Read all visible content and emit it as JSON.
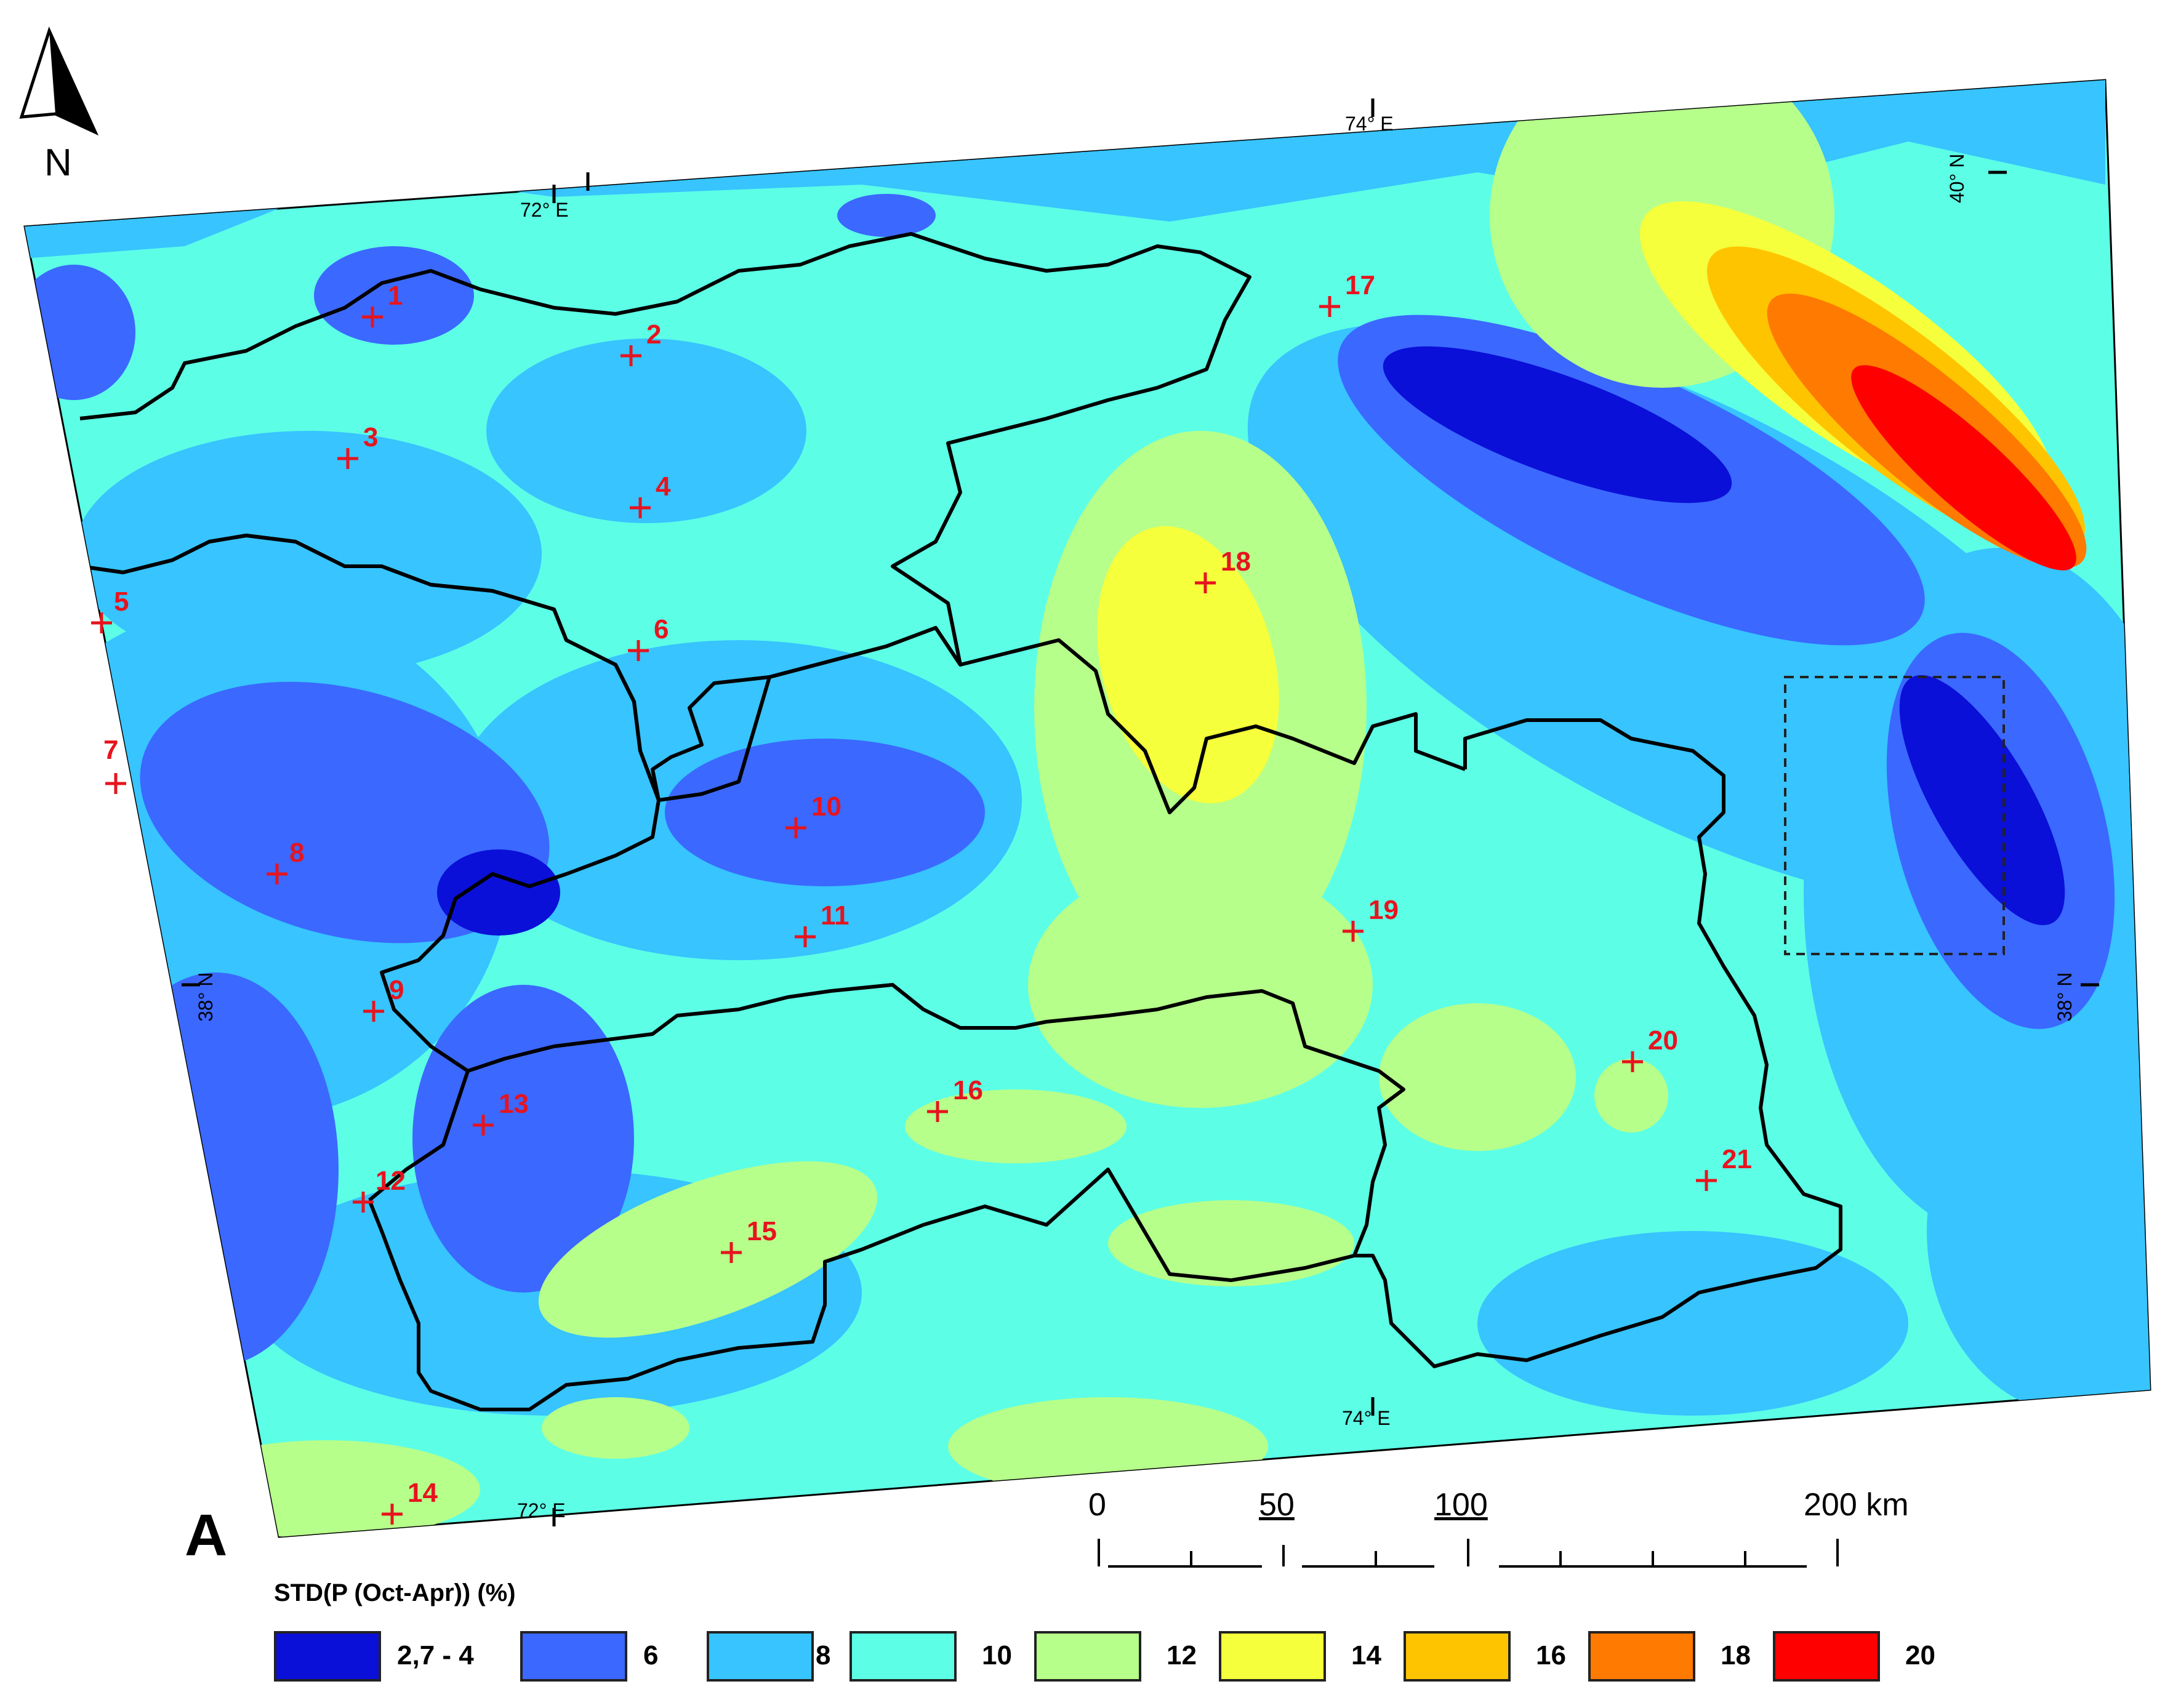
{
  "map": {
    "panel_letter": "A",
    "north_label": "N",
    "lon_labels": [
      "72° E",
      "74° E",
      "72° E",
      "74° E"
    ],
    "lat_labels": [
      "40° N",
      "38° N",
      "38° N"
    ],
    "stations": [
      "1",
      "2",
      "3",
      "4",
      "5",
      "6",
      "7",
      "8",
      "9",
      "10",
      "11",
      "12",
      "13",
      "14",
      "15",
      "16",
      "17",
      "18",
      "19",
      "20",
      "21"
    ],
    "colors": {
      "station_marker": "#e6141e",
      "basin_outline": "#000000",
      "study_box": "#222222"
    }
  },
  "scale_bar": {
    "labels": [
      "0",
      "50",
      "100",
      "200 km"
    ]
  },
  "legend": {
    "title": "STD(P (Oct-Apr)) (%)",
    "classes": [
      {
        "label": "2,7 - 4",
        "color": "#0a10d8"
      },
      {
        "label": "6",
        "color": "#3b68ff"
      },
      {
        "label": "8",
        "color": "#37c4ff"
      },
      {
        "label": "10",
        "color": "#5cffe6"
      },
      {
        "label": "12",
        "color": "#b6ff8a"
      },
      {
        "label": "14",
        "color": "#f5ff3c"
      },
      {
        "label": "16",
        "color": "#ffc400"
      },
      {
        "label": "18",
        "color": "#ff7a00"
      },
      {
        "label": "20",
        "color": "#ff0000"
      }
    ]
  }
}
